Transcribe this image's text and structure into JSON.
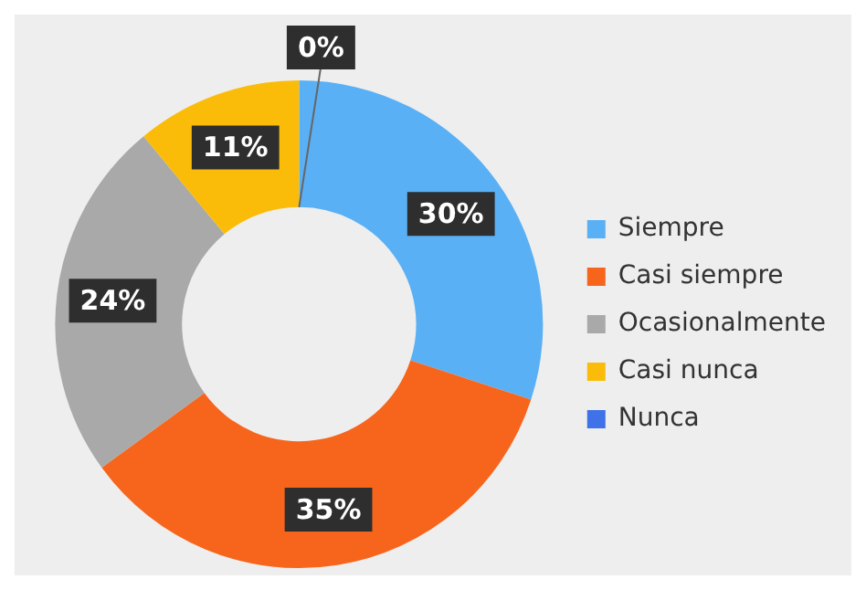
{
  "chart_data": {
    "type": "donut",
    "categories": [
      "Siempre",
      "Casi siempre",
      "Ocasionalmente",
      "Casi nunca",
      "Nunca"
    ],
    "values": [
      30,
      35,
      24,
      11,
      0
    ],
    "colors": [
      "#5ab0f5",
      "#f7651c",
      "#a9a9a9",
      "#fbbc09",
      "#3f72e8"
    ],
    "value_labels": [
      "30%",
      "35%",
      "24%",
      "11%",
      "0%"
    ],
    "legend": "right"
  }
}
